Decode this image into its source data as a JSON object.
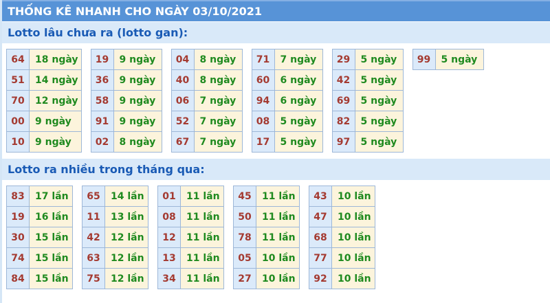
{
  "title": "THỐNG KÊ NHANH CHO NGÀY 03/10/2021",
  "colors": {
    "title_bar_bg": "#5793d7",
    "section_header_bg": "#d9e9f9",
    "section_header_text": "#1a5bb5",
    "number_cell_bg": "#dbeafa",
    "value_cell_bg": "#fcf4dc",
    "number_text": "#a43a31",
    "value_text": "#1f8a1f",
    "cell_border": "#9db7d8"
  },
  "sections": [
    {
      "header": "Lotto lâu chưa ra (lotto gan):",
      "unit": "ngày",
      "tables": [
        [
          {
            "number": "64",
            "value": "18 ngày"
          },
          {
            "number": "51",
            "value": "14 ngày"
          },
          {
            "number": "70",
            "value": "12 ngày"
          },
          {
            "number": "00",
            "value": "9 ngày"
          },
          {
            "number": "10",
            "value": "9 ngày"
          }
        ],
        [
          {
            "number": "19",
            "value": "9 ngày"
          },
          {
            "number": "36",
            "value": "9 ngày"
          },
          {
            "number": "58",
            "value": "9 ngày"
          },
          {
            "number": "91",
            "value": "9 ngày"
          },
          {
            "number": "02",
            "value": "8 ngày"
          }
        ],
        [
          {
            "number": "04",
            "value": "8 ngày"
          },
          {
            "number": "40",
            "value": "8 ngày"
          },
          {
            "number": "06",
            "value": "7 ngày"
          },
          {
            "number": "52",
            "value": "7 ngày"
          },
          {
            "number": "67",
            "value": "7 ngày"
          }
        ],
        [
          {
            "number": "71",
            "value": "7 ngày"
          },
          {
            "number": "60",
            "value": "6 ngày"
          },
          {
            "number": "94",
            "value": "6 ngày"
          },
          {
            "number": "08",
            "value": "5 ngày"
          },
          {
            "number": "17",
            "value": "5 ngày"
          }
        ],
        [
          {
            "number": "29",
            "value": "5 ngày"
          },
          {
            "number": "42",
            "value": "5 ngày"
          },
          {
            "number": "69",
            "value": "5 ngày"
          },
          {
            "number": "82",
            "value": "5 ngày"
          },
          {
            "number": "97",
            "value": "5 ngày"
          }
        ],
        [
          {
            "number": "99",
            "value": "5 ngày"
          }
        ]
      ]
    },
    {
      "header": "Lotto ra nhiều trong tháng qua:",
      "unit": "lần",
      "tables": [
        [
          {
            "number": "83",
            "value": "17 lần"
          },
          {
            "number": "19",
            "value": "16 lần"
          },
          {
            "number": "30",
            "value": "15 lần"
          },
          {
            "number": "74",
            "value": "15 lần"
          },
          {
            "number": "84",
            "value": "15 lần"
          }
        ],
        [
          {
            "number": "65",
            "value": "14 lần"
          },
          {
            "number": "11",
            "value": "13 lần"
          },
          {
            "number": "42",
            "value": "12 lần"
          },
          {
            "number": "63",
            "value": "12 lần"
          },
          {
            "number": "75",
            "value": "12 lần"
          }
        ],
        [
          {
            "number": "01",
            "value": "11 lần"
          },
          {
            "number": "08",
            "value": "11 lần"
          },
          {
            "number": "12",
            "value": "11 lần"
          },
          {
            "number": "13",
            "value": "11 lần"
          },
          {
            "number": "34",
            "value": "11 lần"
          }
        ],
        [
          {
            "number": "45",
            "value": "11 lần"
          },
          {
            "number": "50",
            "value": "11 lần"
          },
          {
            "number": "78",
            "value": "11 lần"
          },
          {
            "number": "05",
            "value": "10 lần"
          },
          {
            "number": "27",
            "value": "10 lần"
          }
        ],
        [
          {
            "number": "43",
            "value": "10 lần"
          },
          {
            "number": "47",
            "value": "10 lần"
          },
          {
            "number": "68",
            "value": "10 lần"
          },
          {
            "number": "77",
            "value": "10 lần"
          },
          {
            "number": "92",
            "value": "10 lần"
          }
        ]
      ]
    }
  ]
}
